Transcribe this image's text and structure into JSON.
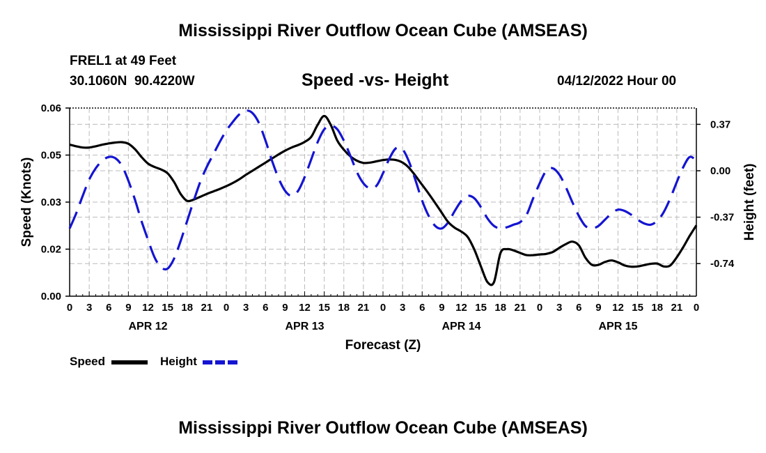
{
  "title": "Mississippi River Outflow Ocean Cube (AMSEAS)",
  "footer_title": "Mississippi River Outflow Ocean Cube (AMSEAS)",
  "station": {
    "name": "FREL1 at 49 Feet",
    "coords": "30.1060N  90.4220W"
  },
  "datetime": "04/12/2022 Hour 00",
  "chart_data": {
    "type": "line",
    "title": "Speed -vs- Height",
    "xlabel": "Forecast (Z)",
    "ylabel": "Speed (Knots)",
    "y2label": "Height (feet)",
    "xlim": [
      0,
      96
    ],
    "ylim": [
      0,
      0.06
    ],
    "y2lim": [
      -1.0,
      0.5
    ],
    "yticks": [
      0,
      0.015,
      0.03,
      0.045,
      0.06
    ],
    "ytick_labels": [
      "0.00",
      "0.02",
      "0.03",
      "0.05",
      "0.06"
    ],
    "y2ticks": [
      0.37,
      0.0,
      -0.37,
      -0.74
    ],
    "y2tick_labels": [
      "0.37",
      "0.00",
      "-0.37",
      "-0.74"
    ],
    "xticks": [
      0,
      3,
      6,
      9,
      12,
      15,
      18,
      21,
      24,
      27,
      30,
      33,
      36,
      39,
      42,
      45,
      48,
      51,
      54,
      57,
      60,
      63,
      66,
      69,
      72,
      75,
      78,
      81,
      84,
      87,
      90,
      93,
      96
    ],
    "xtick_labels": [
      "0",
      "3",
      "6",
      "9",
      "12",
      "15",
      "18",
      "21",
      "0",
      "3",
      "6",
      "9",
      "12",
      "15",
      "18",
      "21",
      "0",
      "3",
      "6",
      "9",
      "12",
      "15",
      "18",
      "21",
      "0",
      "3",
      "6",
      "9",
      "12",
      "15",
      "18",
      "21",
      "0"
    ],
    "date_labels": [
      {
        "x": 12,
        "label": "APR 12"
      },
      {
        "x": 36,
        "label": "APR 13"
      },
      {
        "x": 60,
        "label": "APR 14"
      },
      {
        "x": 84,
        "label": "APR 15"
      }
    ],
    "grid": true,
    "series": [
      {
        "name": "Speed",
        "axis": "left",
        "color": "#000000",
        "style": "solid",
        "x": [
          0,
          1,
          2,
          3,
          4,
          5,
          6,
          7,
          8,
          9,
          10,
          11,
          12,
          13,
          14,
          15,
          16,
          17,
          18,
          19,
          20,
          21,
          22,
          23,
          24,
          25,
          26,
          27,
          28,
          29,
          30,
          31,
          32,
          33,
          34,
          35,
          36,
          37,
          38,
          39,
          40,
          41,
          42,
          43,
          44,
          45,
          46,
          47,
          48,
          49,
          50,
          51,
          52,
          53,
          54,
          55,
          56,
          57,
          58,
          59,
          60,
          61,
          62,
          63,
          64,
          65,
          66,
          67,
          68,
          69,
          70,
          71,
          72,
          73,
          74,
          75,
          76,
          77,
          78,
          79,
          80,
          81,
          82,
          83,
          84,
          85,
          86,
          87,
          88,
          89,
          90,
          91,
          92,
          93,
          94,
          95,
          96
        ],
        "values": [
          0.0483,
          0.0478,
          0.0474,
          0.0474,
          0.0478,
          0.0483,
          0.0487,
          0.049,
          0.0491,
          0.0486,
          0.0469,
          0.0444,
          0.0423,
          0.0412,
          0.0404,
          0.0392,
          0.0364,
          0.0326,
          0.0304,
          0.0308,
          0.0317,
          0.0326,
          0.0334,
          0.0342,
          0.0351,
          0.0361,
          0.0373,
          0.0387,
          0.04,
          0.0413,
          0.0426,
          0.0439,
          0.0452,
          0.0464,
          0.0474,
          0.0482,
          0.0492,
          0.0508,
          0.0547,
          0.0575,
          0.0546,
          0.0496,
          0.0467,
          0.0446,
          0.0432,
          0.0425,
          0.0426,
          0.043,
          0.0434,
          0.0436,
          0.0434,
          0.0426,
          0.0409,
          0.0383,
          0.0355,
          0.0327,
          0.0297,
          0.0266,
          0.0236,
          0.0218,
          0.0206,
          0.0188,
          0.0148,
          0.0095,
          0.0045,
          0.0045,
          0.0138,
          0.015,
          0.0146,
          0.0138,
          0.0131,
          0.0131,
          0.0133,
          0.0135,
          0.0141,
          0.0154,
          0.0166,
          0.0174,
          0.0162,
          0.0123,
          0.01,
          0.01,
          0.0109,
          0.0114,
          0.0108,
          0.0098,
          0.0094,
          0.0095,
          0.0099,
          0.0103,
          0.0104,
          0.0095,
          0.0098,
          0.0124,
          0.0157,
          0.0193,
          0.0226
        ]
      },
      {
        "name": "Height",
        "axis": "right",
        "color": "#1414d2",
        "style": "dashed",
        "x": [
          0,
          1,
          2,
          3,
          4,
          5,
          6,
          7,
          8,
          9,
          10,
          11,
          12,
          13,
          14,
          15,
          16,
          17,
          18,
          19,
          20,
          21,
          22,
          23,
          24,
          25,
          26,
          27,
          28,
          29,
          30,
          31,
          32,
          33,
          34,
          35,
          36,
          37,
          38,
          39,
          40,
          41,
          42,
          43,
          44,
          45,
          46,
          47,
          48,
          49,
          50,
          51,
          52,
          53,
          54,
          55,
          56,
          57,
          58,
          59,
          60,
          61,
          62,
          63,
          64,
          65,
          66,
          67,
          68,
          69,
          70,
          71,
          72,
          73,
          74,
          75,
          76,
          77,
          78,
          79,
          80,
          81,
          82,
          83,
          84,
          85,
          86,
          87,
          88,
          89,
          90,
          91,
          92,
          93,
          94,
          95,
          96
        ],
        "values": [
          -0.46,
          -0.34,
          -0.2,
          -0.07,
          0.02,
          0.08,
          0.11,
          0.1,
          0.04,
          -0.08,
          -0.23,
          -0.4,
          -0.55,
          -0.69,
          -0.77,
          -0.78,
          -0.7,
          -0.56,
          -0.4,
          -0.24,
          -0.09,
          0.03,
          0.13,
          0.23,
          0.32,
          0.39,
          0.45,
          0.48,
          0.46,
          0.38,
          0.24,
          0.08,
          -0.06,
          -0.16,
          -0.2,
          -0.16,
          -0.05,
          0.09,
          0.23,
          0.33,
          0.36,
          0.33,
          0.24,
          0.12,
          -0.01,
          -0.1,
          -0.14,
          -0.12,
          -0.02,
          0.1,
          0.18,
          0.17,
          0.07,
          -0.08,
          -0.24,
          -0.36,
          -0.44,
          -0.46,
          -0.41,
          -0.32,
          -0.24,
          -0.2,
          -0.22,
          -0.29,
          -0.38,
          -0.44,
          -0.46,
          -0.45,
          -0.43,
          -0.41,
          -0.35,
          -0.22,
          -0.1,
          0.0,
          0.02,
          -0.03,
          -0.13,
          -0.25,
          -0.36,
          -0.44,
          -0.46,
          -0.44,
          -0.39,
          -0.34,
          -0.31,
          -0.32,
          -0.35,
          -0.39,
          -0.42,
          -0.43,
          -0.4,
          -0.33,
          -0.22,
          -0.09,
          0.03,
          0.11,
          0.08
        ]
      }
    ],
    "legend": [
      {
        "label": "Speed",
        "series": 0
      },
      {
        "label": "Height",
        "series": 1
      }
    ]
  }
}
